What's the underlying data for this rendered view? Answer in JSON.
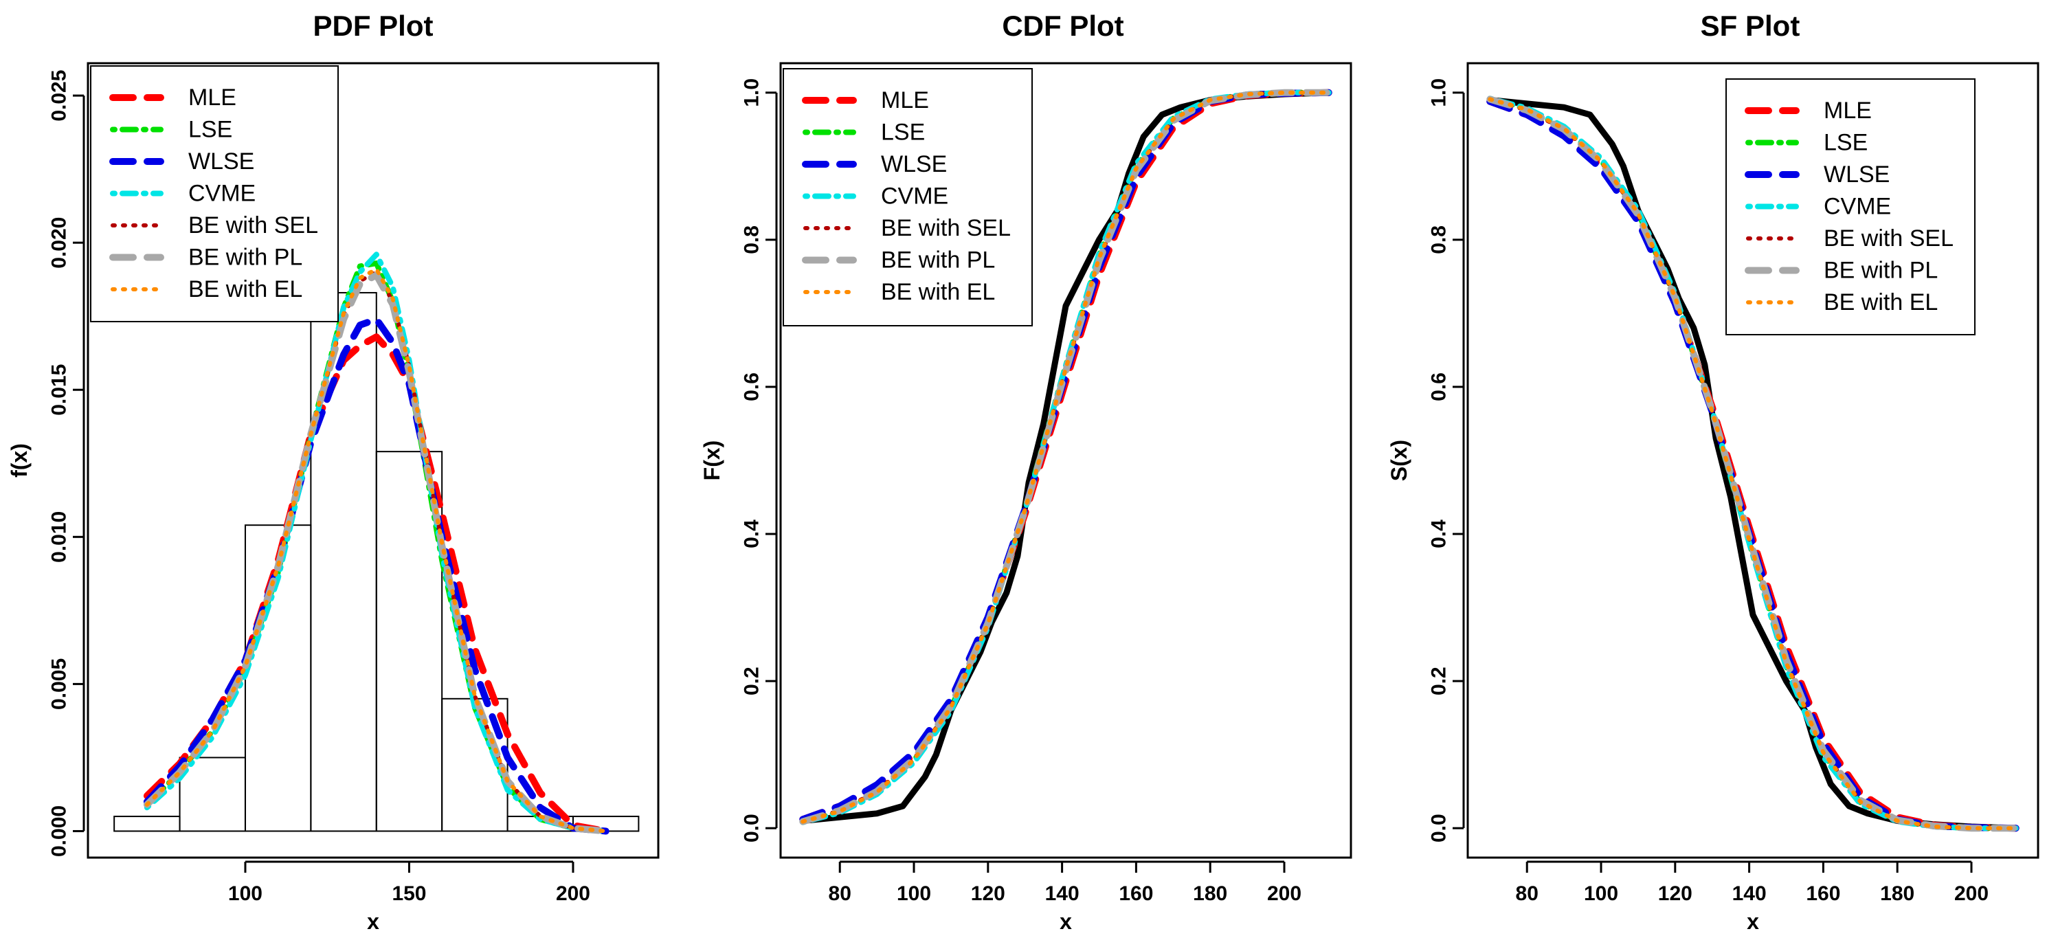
{
  "legend_colors": {
    "MLE": "#ff0000",
    "LSE": "#00e000",
    "WLSE": "#0000e6",
    "CVME": "#00e5e5",
    "BE with SEL": "#b30000",
    "BE with PL": "#a8a8a8",
    "BE with EL": "#ff8c00"
  },
  "chart_data": [
    {
      "type": "line",
      "title": "PDF Plot",
      "xlabel": "x",
      "ylabel": "f(x)",
      "xlim": [
        52,
        226
      ],
      "ylim": [
        -0.0009,
        0.0261
      ],
      "xticks": [
        100,
        150,
        200
      ],
      "yticks": [
        0.0,
        0.005,
        0.01,
        0.015,
        0.02,
        0.025
      ],
      "ytick_labels": [
        "0.000",
        "0.005",
        "0.010",
        "0.015",
        "0.020",
        "0.025"
      ],
      "legend_position": "top-left",
      "histogram": {
        "bins": [
          [
            60,
            80
          ],
          [
            80,
            100
          ],
          [
            100,
            120
          ],
          [
            120,
            140
          ],
          [
            140,
            160
          ],
          [
            160,
            180
          ],
          [
            180,
            200
          ],
          [
            200,
            220
          ]
        ],
        "density": [
          0.0005,
          0.0025,
          0.0104,
          0.0183,
          0.0129,
          0.0045,
          0.0005,
          0.0005
        ]
      },
      "series": [
        {
          "name": "MLE",
          "x": [
            70,
            80,
            90,
            100,
            110,
            120,
            130,
            135,
            140,
            145,
            150,
            160,
            170,
            180,
            190,
            200,
            210
          ],
          "values": [
            0.0012,
            0.0023,
            0.0038,
            0.0058,
            0.0092,
            0.0135,
            0.016,
            0.0165,
            0.0168,
            0.0162,
            0.0152,
            0.0108,
            0.0062,
            0.0033,
            0.0013,
            0.0002,
            0.0
          ]
        },
        {
          "name": "LSE",
          "x": [
            70,
            80,
            90,
            100,
            110,
            120,
            130,
            135,
            140,
            145,
            150,
            160,
            170,
            180,
            190,
            200,
            210
          ],
          "values": [
            0.0009,
            0.002,
            0.0034,
            0.0055,
            0.0088,
            0.0135,
            0.0178,
            0.0192,
            0.0193,
            0.018,
            0.0155,
            0.0092,
            0.0042,
            0.0015,
            0.0004,
            0.0001,
            0.0
          ]
        },
        {
          "name": "WLSE",
          "x": [
            70,
            80,
            90,
            100,
            110,
            120,
            130,
            135,
            140,
            145,
            150,
            160,
            170,
            180,
            190,
            200,
            210
          ],
          "values": [
            0.001,
            0.0022,
            0.0038,
            0.0058,
            0.009,
            0.0132,
            0.0162,
            0.0172,
            0.0174,
            0.0166,
            0.0152,
            0.01,
            0.0055,
            0.0025,
            0.0008,
            0.0001,
            0.0
          ]
        },
        {
          "name": "CVME",
          "x": [
            70,
            80,
            90,
            100,
            110,
            120,
            130,
            135,
            140,
            145,
            150,
            160,
            170,
            180,
            190,
            200,
            210
          ],
          "values": [
            0.0008,
            0.0018,
            0.0032,
            0.0053,
            0.0086,
            0.0133,
            0.0178,
            0.019,
            0.0196,
            0.0185,
            0.016,
            0.0094,
            0.0042,
            0.0014,
            0.0004,
            0.0001,
            0.0
          ]
        },
        {
          "name": "BE with SEL",
          "x": [
            70,
            80,
            90,
            100,
            110,
            120,
            130,
            135,
            140,
            145,
            150,
            160,
            170,
            180,
            190,
            200,
            210
          ],
          "values": [
            0.0009,
            0.002,
            0.0034,
            0.0056,
            0.009,
            0.0135,
            0.0175,
            0.0187,
            0.019,
            0.018,
            0.0158,
            0.0098,
            0.0046,
            0.0017,
            0.0005,
            0.0001,
            0.0
          ]
        },
        {
          "name": "BE with PL",
          "x": [
            70,
            80,
            90,
            100,
            110,
            120,
            130,
            135,
            140,
            145,
            150,
            160,
            170,
            180,
            190,
            200,
            210
          ],
          "values": [
            0.0009,
            0.002,
            0.0034,
            0.0056,
            0.009,
            0.0135,
            0.0174,
            0.0186,
            0.0189,
            0.0179,
            0.0156,
            0.0097,
            0.0046,
            0.0017,
            0.0005,
            0.0001,
            0.0
          ]
        },
        {
          "name": "BE with EL",
          "x": [
            70,
            80,
            90,
            100,
            110,
            120,
            130,
            135,
            140,
            145,
            150,
            160,
            170,
            180,
            190,
            200,
            210
          ],
          "values": [
            0.0009,
            0.002,
            0.0034,
            0.0056,
            0.009,
            0.0135,
            0.0176,
            0.0188,
            0.0191,
            0.0181,
            0.0158,
            0.0098,
            0.0046,
            0.0017,
            0.0005,
            0.0001,
            0.0
          ]
        }
      ]
    },
    {
      "type": "line",
      "title": "CDF Plot",
      "xlabel": "x",
      "ylabel": "F(x)",
      "xlim": [
        64,
        218
      ],
      "ylim": [
        -0.04,
        1.04
      ],
      "xticks": [
        80,
        100,
        120,
        140,
        160,
        180,
        200
      ],
      "yticks": [
        0.0,
        0.2,
        0.4,
        0.6,
        0.8,
        1.0
      ],
      "ytick_labels": [
        "0.0",
        "0.2",
        "0.4",
        "0.6",
        "0.8",
        "1.0"
      ],
      "legend_position": "top-left",
      "empirical": {
        "x": [
          70,
          90,
          97,
          100,
          103,
          106,
          110,
          115,
          118,
          121,
          125,
          128,
          131,
          135,
          138,
          141,
          146,
          150,
          155,
          158,
          162,
          167,
          172,
          180,
          190,
          200,
          212
        ],
        "values": [
          0.01,
          0.02,
          0.03,
          0.05,
          0.07,
          0.1,
          0.16,
          0.21,
          0.24,
          0.28,
          0.32,
          0.37,
          0.47,
          0.55,
          0.63,
          0.71,
          0.76,
          0.8,
          0.84,
          0.89,
          0.94,
          0.97,
          0.98,
          0.99,
          0.995,
          0.998,
          1.0
        ]
      },
      "series": [
        {
          "name": "MLE",
          "x": [
            70,
            80,
            90,
            100,
            110,
            120,
            130,
            140,
            150,
            160,
            170,
            180,
            190,
            200,
            212
          ],
          "values": [
            0.012,
            0.03,
            0.058,
            0.1,
            0.172,
            0.283,
            0.427,
            0.591,
            0.752,
            0.878,
            0.952,
            0.985,
            0.996,
            0.999,
            1.0
          ]
        },
        {
          "name": "LSE",
          "x": [
            70,
            80,
            90,
            100,
            110,
            120,
            130,
            140,
            150,
            160,
            170,
            180,
            190,
            200,
            212
          ],
          "values": [
            0.008,
            0.022,
            0.048,
            0.092,
            0.163,
            0.278,
            0.435,
            0.612,
            0.78,
            0.9,
            0.965,
            0.99,
            0.998,
            1.0,
            1.0
          ]
        },
        {
          "name": "WLSE",
          "x": [
            70,
            80,
            90,
            100,
            110,
            120,
            130,
            140,
            150,
            160,
            170,
            180,
            190,
            200,
            212
          ],
          "values": [
            0.012,
            0.03,
            0.059,
            0.103,
            0.175,
            0.287,
            0.434,
            0.6,
            0.762,
            0.885,
            0.958,
            0.988,
            0.997,
            0.999,
            1.0
          ]
        },
        {
          "name": "CVME",
          "x": [
            70,
            80,
            90,
            100,
            110,
            120,
            130,
            140,
            150,
            160,
            170,
            180,
            190,
            200,
            212
          ],
          "values": [
            0.008,
            0.021,
            0.046,
            0.089,
            0.159,
            0.273,
            0.432,
            0.612,
            0.782,
            0.903,
            0.967,
            0.991,
            0.998,
            1.0,
            1.0
          ]
        },
        {
          "name": "BE with SEL",
          "x": [
            70,
            80,
            90,
            100,
            110,
            120,
            130,
            140,
            150,
            160,
            170,
            180,
            190,
            200,
            212
          ],
          "values": [
            0.009,
            0.024,
            0.05,
            0.094,
            0.165,
            0.279,
            0.433,
            0.607,
            0.773,
            0.896,
            0.963,
            0.99,
            0.998,
            1.0,
            1.0
          ]
        },
        {
          "name": "BE with PL",
          "x": [
            70,
            80,
            90,
            100,
            110,
            120,
            130,
            140,
            150,
            160,
            170,
            180,
            190,
            200,
            212
          ],
          "values": [
            0.009,
            0.024,
            0.05,
            0.094,
            0.166,
            0.279,
            0.432,
            0.605,
            0.771,
            0.894,
            0.962,
            0.989,
            0.997,
            1.0,
            1.0
          ]
        },
        {
          "name": "BE with EL",
          "x": [
            70,
            80,
            90,
            100,
            110,
            120,
            130,
            140,
            150,
            160,
            170,
            180,
            190,
            200,
            212
          ],
          "values": [
            0.009,
            0.023,
            0.049,
            0.093,
            0.164,
            0.278,
            0.433,
            0.608,
            0.775,
            0.897,
            0.964,
            0.99,
            0.998,
            1.0,
            1.0
          ]
        }
      ]
    },
    {
      "type": "line",
      "title": "SF Plot",
      "xlabel": "x",
      "ylabel": "S(x)",
      "xlim": [
        64,
        218
      ],
      "ylim": [
        -0.04,
        1.04
      ],
      "xticks": [
        80,
        100,
        120,
        140,
        160,
        180,
        200
      ],
      "yticks": [
        0.0,
        0.2,
        0.4,
        0.6,
        0.8,
        1.0
      ],
      "ytick_labels": [
        "0.0",
        "0.2",
        "0.4",
        "0.6",
        "0.8",
        "1.0"
      ],
      "legend_position": "top-right",
      "empirical": {
        "x": [
          70,
          90,
          97,
          100,
          103,
          106,
          110,
          115,
          118,
          121,
          125,
          128,
          131,
          135,
          138,
          141,
          146,
          150,
          155,
          158,
          162,
          167,
          172,
          180,
          190,
          200,
          212
        ],
        "values": [
          0.99,
          0.98,
          0.97,
          0.95,
          0.93,
          0.9,
          0.84,
          0.79,
          0.76,
          0.72,
          0.68,
          0.63,
          0.53,
          0.45,
          0.37,
          0.29,
          0.24,
          0.2,
          0.16,
          0.11,
          0.06,
          0.03,
          0.02,
          0.01,
          0.005,
          0.002,
          0.0
        ]
      },
      "series": [
        {
          "name": "MLE",
          "x": [
            70,
            80,
            90,
            100,
            110,
            120,
            130,
            140,
            150,
            160,
            170,
            180,
            190,
            200,
            212
          ],
          "values": [
            0.988,
            0.97,
            0.942,
            0.9,
            0.828,
            0.717,
            0.573,
            0.409,
            0.248,
            0.122,
            0.048,
            0.015,
            0.004,
            0.001,
            0.0
          ]
        },
        {
          "name": "LSE",
          "x": [
            70,
            80,
            90,
            100,
            110,
            120,
            130,
            140,
            150,
            160,
            170,
            180,
            190,
            200,
            212
          ],
          "values": [
            0.992,
            0.978,
            0.952,
            0.908,
            0.837,
            0.722,
            0.565,
            0.388,
            0.22,
            0.1,
            0.035,
            0.01,
            0.002,
            0.0,
            0.0
          ]
        },
        {
          "name": "WLSE",
          "x": [
            70,
            80,
            90,
            100,
            110,
            120,
            130,
            140,
            150,
            160,
            170,
            180,
            190,
            200,
            212
          ],
          "values": [
            0.988,
            0.97,
            0.941,
            0.897,
            0.825,
            0.713,
            0.566,
            0.4,
            0.238,
            0.115,
            0.042,
            0.012,
            0.003,
            0.001,
            0.0
          ]
        },
        {
          "name": "CVME",
          "x": [
            70,
            80,
            90,
            100,
            110,
            120,
            130,
            140,
            150,
            160,
            170,
            180,
            190,
            200,
            212
          ],
          "values": [
            0.992,
            0.979,
            0.954,
            0.911,
            0.841,
            0.727,
            0.568,
            0.388,
            0.218,
            0.097,
            0.033,
            0.009,
            0.002,
            0.0,
            0.0
          ]
        },
        {
          "name": "BE with SEL",
          "x": [
            70,
            80,
            90,
            100,
            110,
            120,
            130,
            140,
            150,
            160,
            170,
            180,
            190,
            200,
            212
          ],
          "values": [
            0.991,
            0.976,
            0.95,
            0.906,
            0.835,
            0.721,
            0.567,
            0.393,
            0.227,
            0.104,
            0.037,
            0.01,
            0.002,
            0.0,
            0.0
          ]
        },
        {
          "name": "BE with PL",
          "x": [
            70,
            80,
            90,
            100,
            110,
            120,
            130,
            140,
            150,
            160,
            170,
            180,
            190,
            200,
            212
          ],
          "values": [
            0.991,
            0.976,
            0.95,
            0.906,
            0.834,
            0.721,
            0.568,
            0.395,
            0.229,
            0.106,
            0.038,
            0.011,
            0.003,
            0.0,
            0.0
          ]
        },
        {
          "name": "BE with EL",
          "x": [
            70,
            80,
            90,
            100,
            110,
            120,
            130,
            140,
            150,
            160,
            170,
            180,
            190,
            200,
            212
          ],
          "values": [
            0.991,
            0.977,
            0.951,
            0.907,
            0.836,
            0.722,
            0.567,
            0.392,
            0.225,
            0.103,
            0.036,
            0.01,
            0.002,
            0.0,
            0.0
          ]
        }
      ]
    }
  ]
}
